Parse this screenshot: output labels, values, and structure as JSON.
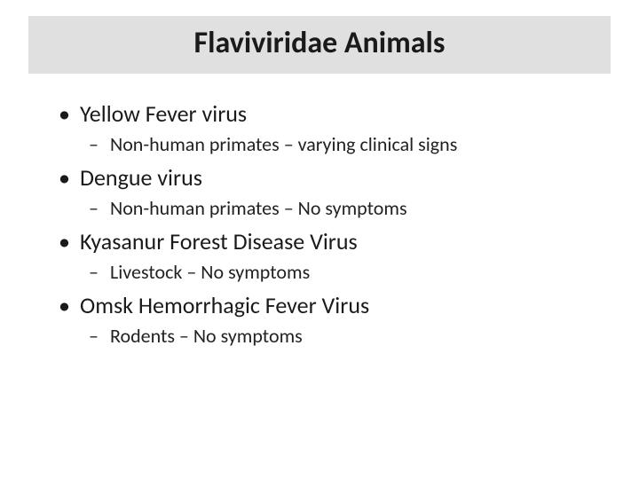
{
  "title": "Flaviviridae Animals",
  "items": [
    {
      "text": "Yellow Fever virus",
      "sub": "Non-human primates – varying clinical signs"
    },
    {
      "text": "Dengue virus",
      "sub": "Non-human primates – No symptoms"
    },
    {
      "text": "Kyasanur Forest Disease Virus",
      "sub": "Livestock – No symptoms"
    },
    {
      "text": "Omsk Hemorrhagic Fever Virus",
      "sub": "Rodents – No symptoms"
    }
  ],
  "colors": {
    "title_bar_bg": "#e0e0e0",
    "background": "#ffffff",
    "text": "#1a1a1a"
  }
}
